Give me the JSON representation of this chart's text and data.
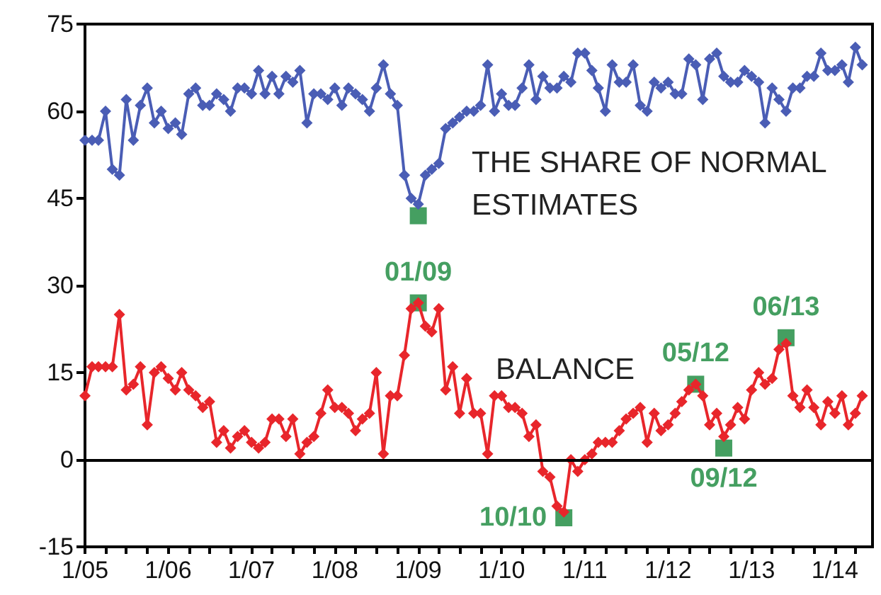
{
  "chart_data": {
    "type": "line",
    "x": [
      "2005-01",
      "2005-02",
      "2005-03",
      "2005-04",
      "2005-05",
      "2005-06",
      "2005-07",
      "2005-08",
      "2005-09",
      "2005-10",
      "2005-11",
      "2005-12",
      "2006-01",
      "2006-02",
      "2006-03",
      "2006-04",
      "2006-05",
      "2006-06",
      "2006-07",
      "2006-08",
      "2006-09",
      "2006-10",
      "2006-11",
      "2006-12",
      "2007-01",
      "2007-02",
      "2007-03",
      "2007-04",
      "2007-05",
      "2007-06",
      "2007-07",
      "2007-08",
      "2007-09",
      "2007-10",
      "2007-11",
      "2007-12",
      "2008-01",
      "2008-02",
      "2008-03",
      "2008-04",
      "2008-05",
      "2008-06",
      "2008-07",
      "2008-08",
      "2008-09",
      "2008-10",
      "2008-11",
      "2008-12",
      "2009-01",
      "2009-02",
      "2009-03",
      "2009-04",
      "2009-05",
      "2009-06",
      "2009-07",
      "2009-08",
      "2009-09",
      "2009-10",
      "2009-11",
      "2009-12",
      "2010-01",
      "2010-02",
      "2010-03",
      "2010-04",
      "2010-05",
      "2010-06",
      "2010-07",
      "2010-08",
      "2010-09",
      "2010-10",
      "2010-11",
      "2010-12",
      "2011-01",
      "2011-02",
      "2011-03",
      "2011-04",
      "2011-05",
      "2011-06",
      "2011-07",
      "2011-08",
      "2011-09",
      "2011-10",
      "2011-11",
      "2011-12",
      "2012-01",
      "2012-02",
      "2012-03",
      "2012-04",
      "2012-05",
      "2012-06",
      "2012-07",
      "2012-08",
      "2012-09",
      "2012-10",
      "2012-11",
      "2012-12",
      "2013-01",
      "2013-02",
      "2013-03",
      "2013-04",
      "2013-05",
      "2013-06",
      "2013-07",
      "2013-08",
      "2013-09",
      "2013-10",
      "2013-11",
      "2013-12",
      "2014-01",
      "2014-02",
      "2014-03",
      "2014-04",
      "2014-05"
    ],
    "series": [
      {
        "name": "THE SHARE OF NORMAL ESTIMATES",
        "color": "#4a5db5",
        "marker": "diamond",
        "values": [
          55,
          55,
          55,
          60,
          50,
          49,
          62,
          55,
          61,
          64,
          58,
          60,
          57,
          58,
          56,
          63,
          64,
          61,
          61,
          63,
          62,
          60,
          64,
          64,
          63,
          67,
          63,
          66,
          63,
          66,
          65,
          67,
          58,
          63,
          63,
          62,
          64,
          61,
          64,
          63,
          62,
          60,
          64,
          68,
          63,
          61,
          49,
          45,
          44,
          49,
          50,
          51,
          57,
          58,
          59,
          60,
          60,
          61,
          68,
          60,
          63,
          61,
          61,
          64,
          68,
          62,
          66,
          64,
          64,
          66,
          65,
          70,
          70,
          67,
          64,
          60,
          68,
          65,
          65,
          68,
          61,
          60,
          65,
          64,
          65,
          63,
          63,
          69,
          68,
          62,
          69,
          70,
          66,
          65,
          65,
          67,
          66,
          65,
          58,
          64,
          62,
          60,
          64,
          64,
          66,
          66,
          70,
          67,
          67,
          68,
          65,
          71,
          68
        ]
      },
      {
        "name": "BALANCE",
        "color": "#e8262b",
        "marker": "diamond",
        "values": [
          11,
          16,
          16,
          16,
          16,
          25,
          12,
          13,
          16,
          6,
          15,
          16,
          14,
          12,
          15,
          12,
          11,
          9,
          10,
          3,
          5,
          2,
          4,
          5,
          3,
          2,
          3,
          7,
          7,
          4,
          7,
          1,
          3,
          4,
          8,
          12,
          9,
          9,
          8,
          5,
          7,
          8,
          15,
          1,
          11,
          11,
          18,
          26,
          27,
          23,
          22,
          26,
          12,
          16,
          8,
          14,
          8,
          8,
          1,
          11,
          11,
          9,
          9,
          8,
          4,
          6,
          -2,
          -3,
          -8,
          -9,
          0,
          -2,
          0,
          1,
          3,
          3,
          3,
          5,
          7,
          8,
          9,
          3,
          8,
          5,
          6,
          8,
          10,
          12,
          13,
          11,
          6,
          8,
          4,
          6,
          9,
          7,
          12,
          15,
          13,
          14,
          19,
          20,
          11,
          9,
          12,
          9,
          6,
          10,
          8,
          11,
          6,
          8,
          11
        ]
      },
      {
        "type": "scatter",
        "color": "#17873a",
        "marker": "square",
        "x": [
          "2009-01",
          "2009-01",
          "2010-10",
          "2012-05",
          "2012-09",
          "2013-06"
        ],
        "values": [
          42,
          27,
          -10,
          13,
          2,
          21
        ]
      }
    ],
    "annotations": [
      {
        "text": "01/09",
        "x": "2009-01",
        "y": 27
      },
      {
        "text": "10/10",
        "x": "2010-10",
        "y": -10
      },
      {
        "text": "05/12",
        "x": "2012-05",
        "y": 13
      },
      {
        "text": "09/12",
        "x": "2012-09",
        "y": 2
      },
      {
        "text": "06/13",
        "x": "2013-06",
        "y": 21
      }
    ],
    "ref_lines": [
      {
        "axis": "y",
        "value": 0,
        "color": "#000000"
      }
    ],
    "xlim": [
      "2005-01",
      "2014-06-15"
    ],
    "xticks": [
      {
        "value": "2005-01",
        "label": "1/05"
      },
      {
        "value": "2005-04",
        "label": null
      },
      {
        "value": "2005-07",
        "label": null
      },
      {
        "value": "2005-10",
        "label": null
      },
      {
        "value": "2006-01",
        "label": "1/06"
      },
      {
        "value": "2006-04",
        "label": null
      },
      {
        "value": "2006-07",
        "label": null
      },
      {
        "value": "2006-10",
        "label": null
      },
      {
        "value": "2007-01",
        "label": "1/07"
      },
      {
        "value": "2007-04",
        "label": null
      },
      {
        "value": "2007-07",
        "label": null
      },
      {
        "value": "2007-10",
        "label": null
      },
      {
        "value": "2008-01",
        "label": "1/08"
      },
      {
        "value": "2008-04",
        "label": null
      },
      {
        "value": "2008-07",
        "label": null
      },
      {
        "value": "2008-10",
        "label": null
      },
      {
        "value": "2009-01",
        "label": "1/09"
      },
      {
        "value": "2009-04",
        "label": null
      },
      {
        "value": "2009-07",
        "label": null
      },
      {
        "value": "2009-10",
        "label": null
      },
      {
        "value": "2010-01",
        "label": "1/10"
      },
      {
        "value": "2010-04",
        "label": null
      },
      {
        "value": "2010-07",
        "label": null
      },
      {
        "value": "2010-10",
        "label": null
      },
      {
        "value": "2011-01",
        "label": "1/11"
      },
      {
        "value": "2011-04",
        "label": null
      },
      {
        "value": "2011-07",
        "label": null
      },
      {
        "value": "2011-10",
        "label": null
      },
      {
        "value": "2012-01",
        "label": "1/12"
      },
      {
        "value": "2012-04",
        "label": null
      },
      {
        "value": "2012-07",
        "label": null
      },
      {
        "value": "2012-10",
        "label": null
      },
      {
        "value": "2013-01",
        "label": "1/13"
      },
      {
        "value": "2013-04",
        "label": null
      },
      {
        "value": "2013-07",
        "label": null
      },
      {
        "value": "2013-10",
        "label": null
      },
      {
        "value": "2014-01",
        "label": "1/14"
      },
      {
        "value": "2014-04",
        "label": null
      }
    ],
    "ylim": [
      -15,
      75
    ],
    "yticks": [
      -15,
      0,
      15,
      30,
      45,
      60,
      75
    ],
    "grid": false,
    "legend": false
  }
}
